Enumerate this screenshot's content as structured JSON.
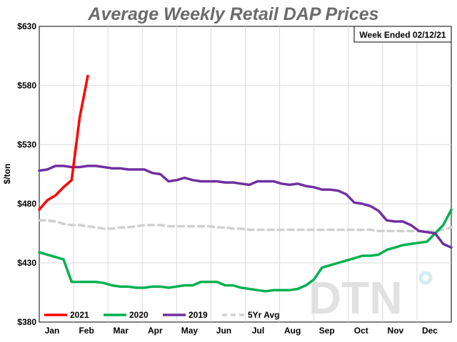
{
  "chart_data": {
    "type": "line",
    "title": "Average Weekly Retail DAP Prices",
    "annotation": "Week Ended 02/12/21",
    "ylabel": "$/ton",
    "xlabel": "",
    "ylim": [
      380,
      630
    ],
    "yticks": [
      380,
      430,
      480,
      530,
      580,
      630
    ],
    "ytick_labels": [
      "$380",
      "$430",
      "$480",
      "$530",
      "$580",
      "$630"
    ],
    "xticks": [
      "Jan",
      "Feb",
      "Mar",
      "Apr",
      "May",
      "Jun",
      "Jul",
      "Aug",
      "Sep",
      "Oct",
      "Nov",
      "Dec"
    ],
    "x_unit": "week_of_year",
    "grid": true,
    "legend_position": "bottom",
    "watermark": "DTN",
    "series": [
      {
        "name": "2021",
        "color": "#ff0000",
        "dash": false,
        "x": [
          0,
          1,
          2,
          3,
          4,
          5,
          6
        ],
        "values": [
          475,
          483,
          487,
          494,
          500,
          553,
          588
        ]
      },
      {
        "name": "2020",
        "color": "#00b050",
        "dash": false,
        "x": [
          0,
          1,
          2,
          3,
          4,
          5,
          6,
          7,
          8,
          9,
          10,
          11,
          12,
          13,
          14,
          15,
          16,
          17,
          18,
          19,
          20,
          21,
          22,
          23,
          24,
          25,
          26,
          27,
          28,
          29,
          30,
          31,
          32,
          33,
          34,
          35,
          36,
          37,
          38,
          39,
          40,
          41,
          42,
          43,
          44,
          45,
          46,
          47,
          48,
          49,
          50,
          51
        ],
        "values": [
          439,
          437,
          435,
          433,
          414,
          414,
          414,
          414,
          413,
          411,
          410,
          410,
          409,
          409,
          410,
          410,
          409,
          410,
          411,
          411,
          414,
          414,
          414,
          411,
          411,
          409,
          408,
          407,
          406,
          407,
          407,
          407,
          408,
          411,
          416,
          426,
          428,
          430,
          432,
          434,
          436,
          436,
          437,
          441,
          443,
          445,
          446,
          447,
          448,
          455,
          462,
          475
        ]
      },
      {
        "name": "2019",
        "color": "#7030a0",
        "dash": false,
        "x": [
          0,
          1,
          2,
          3,
          4,
          5,
          6,
          7,
          8,
          9,
          10,
          11,
          12,
          13,
          14,
          15,
          16,
          17,
          18,
          19,
          20,
          21,
          22,
          23,
          24,
          25,
          26,
          27,
          28,
          29,
          30,
          31,
          32,
          33,
          34,
          35,
          36,
          37,
          38,
          39,
          40,
          41,
          42,
          43,
          44,
          45,
          46,
          47,
          48,
          49,
          50,
          51
        ],
        "values": [
          508,
          509,
          512,
          512,
          511,
          511,
          512,
          512,
          511,
          510,
          510,
          509,
          509,
          509,
          506,
          505,
          499,
          500,
          502,
          500,
          499,
          499,
          499,
          498,
          498,
          497,
          496,
          499,
          499,
          499,
          497,
          496,
          497,
          495,
          494,
          492,
          492,
          491,
          488,
          481,
          480,
          478,
          474,
          466,
          465,
          465,
          462,
          457,
          456,
          455,
          446,
          443
        ]
      },
      {
        "name": "5Yr Avg",
        "color": "#d0d0d0",
        "dash": true,
        "x": [
          0,
          1,
          2,
          3,
          4,
          5,
          6,
          7,
          8,
          9,
          10,
          11,
          12,
          13,
          14,
          15,
          16,
          17,
          18,
          19,
          20,
          21,
          22,
          23,
          24,
          25,
          26,
          27,
          28,
          29,
          30,
          31,
          32,
          33,
          34,
          35,
          36,
          37,
          38,
          39,
          40,
          41,
          42,
          43,
          44,
          45,
          46,
          47,
          48,
          49,
          50,
          51
        ],
        "values": [
          466,
          466,
          465,
          463,
          462,
          462,
          461,
          460,
          459,
          459,
          460,
          460,
          461,
          462,
          462,
          462,
          461,
          461,
          461,
          461,
          461,
          461,
          460,
          460,
          459,
          459,
          458,
          458,
          458,
          458,
          458,
          458,
          458,
          458,
          458,
          458,
          458,
          458,
          458,
          458,
          458,
          458,
          457,
          457,
          457,
          457,
          457,
          457,
          457,
          457,
          458,
          460
        ]
      }
    ]
  }
}
